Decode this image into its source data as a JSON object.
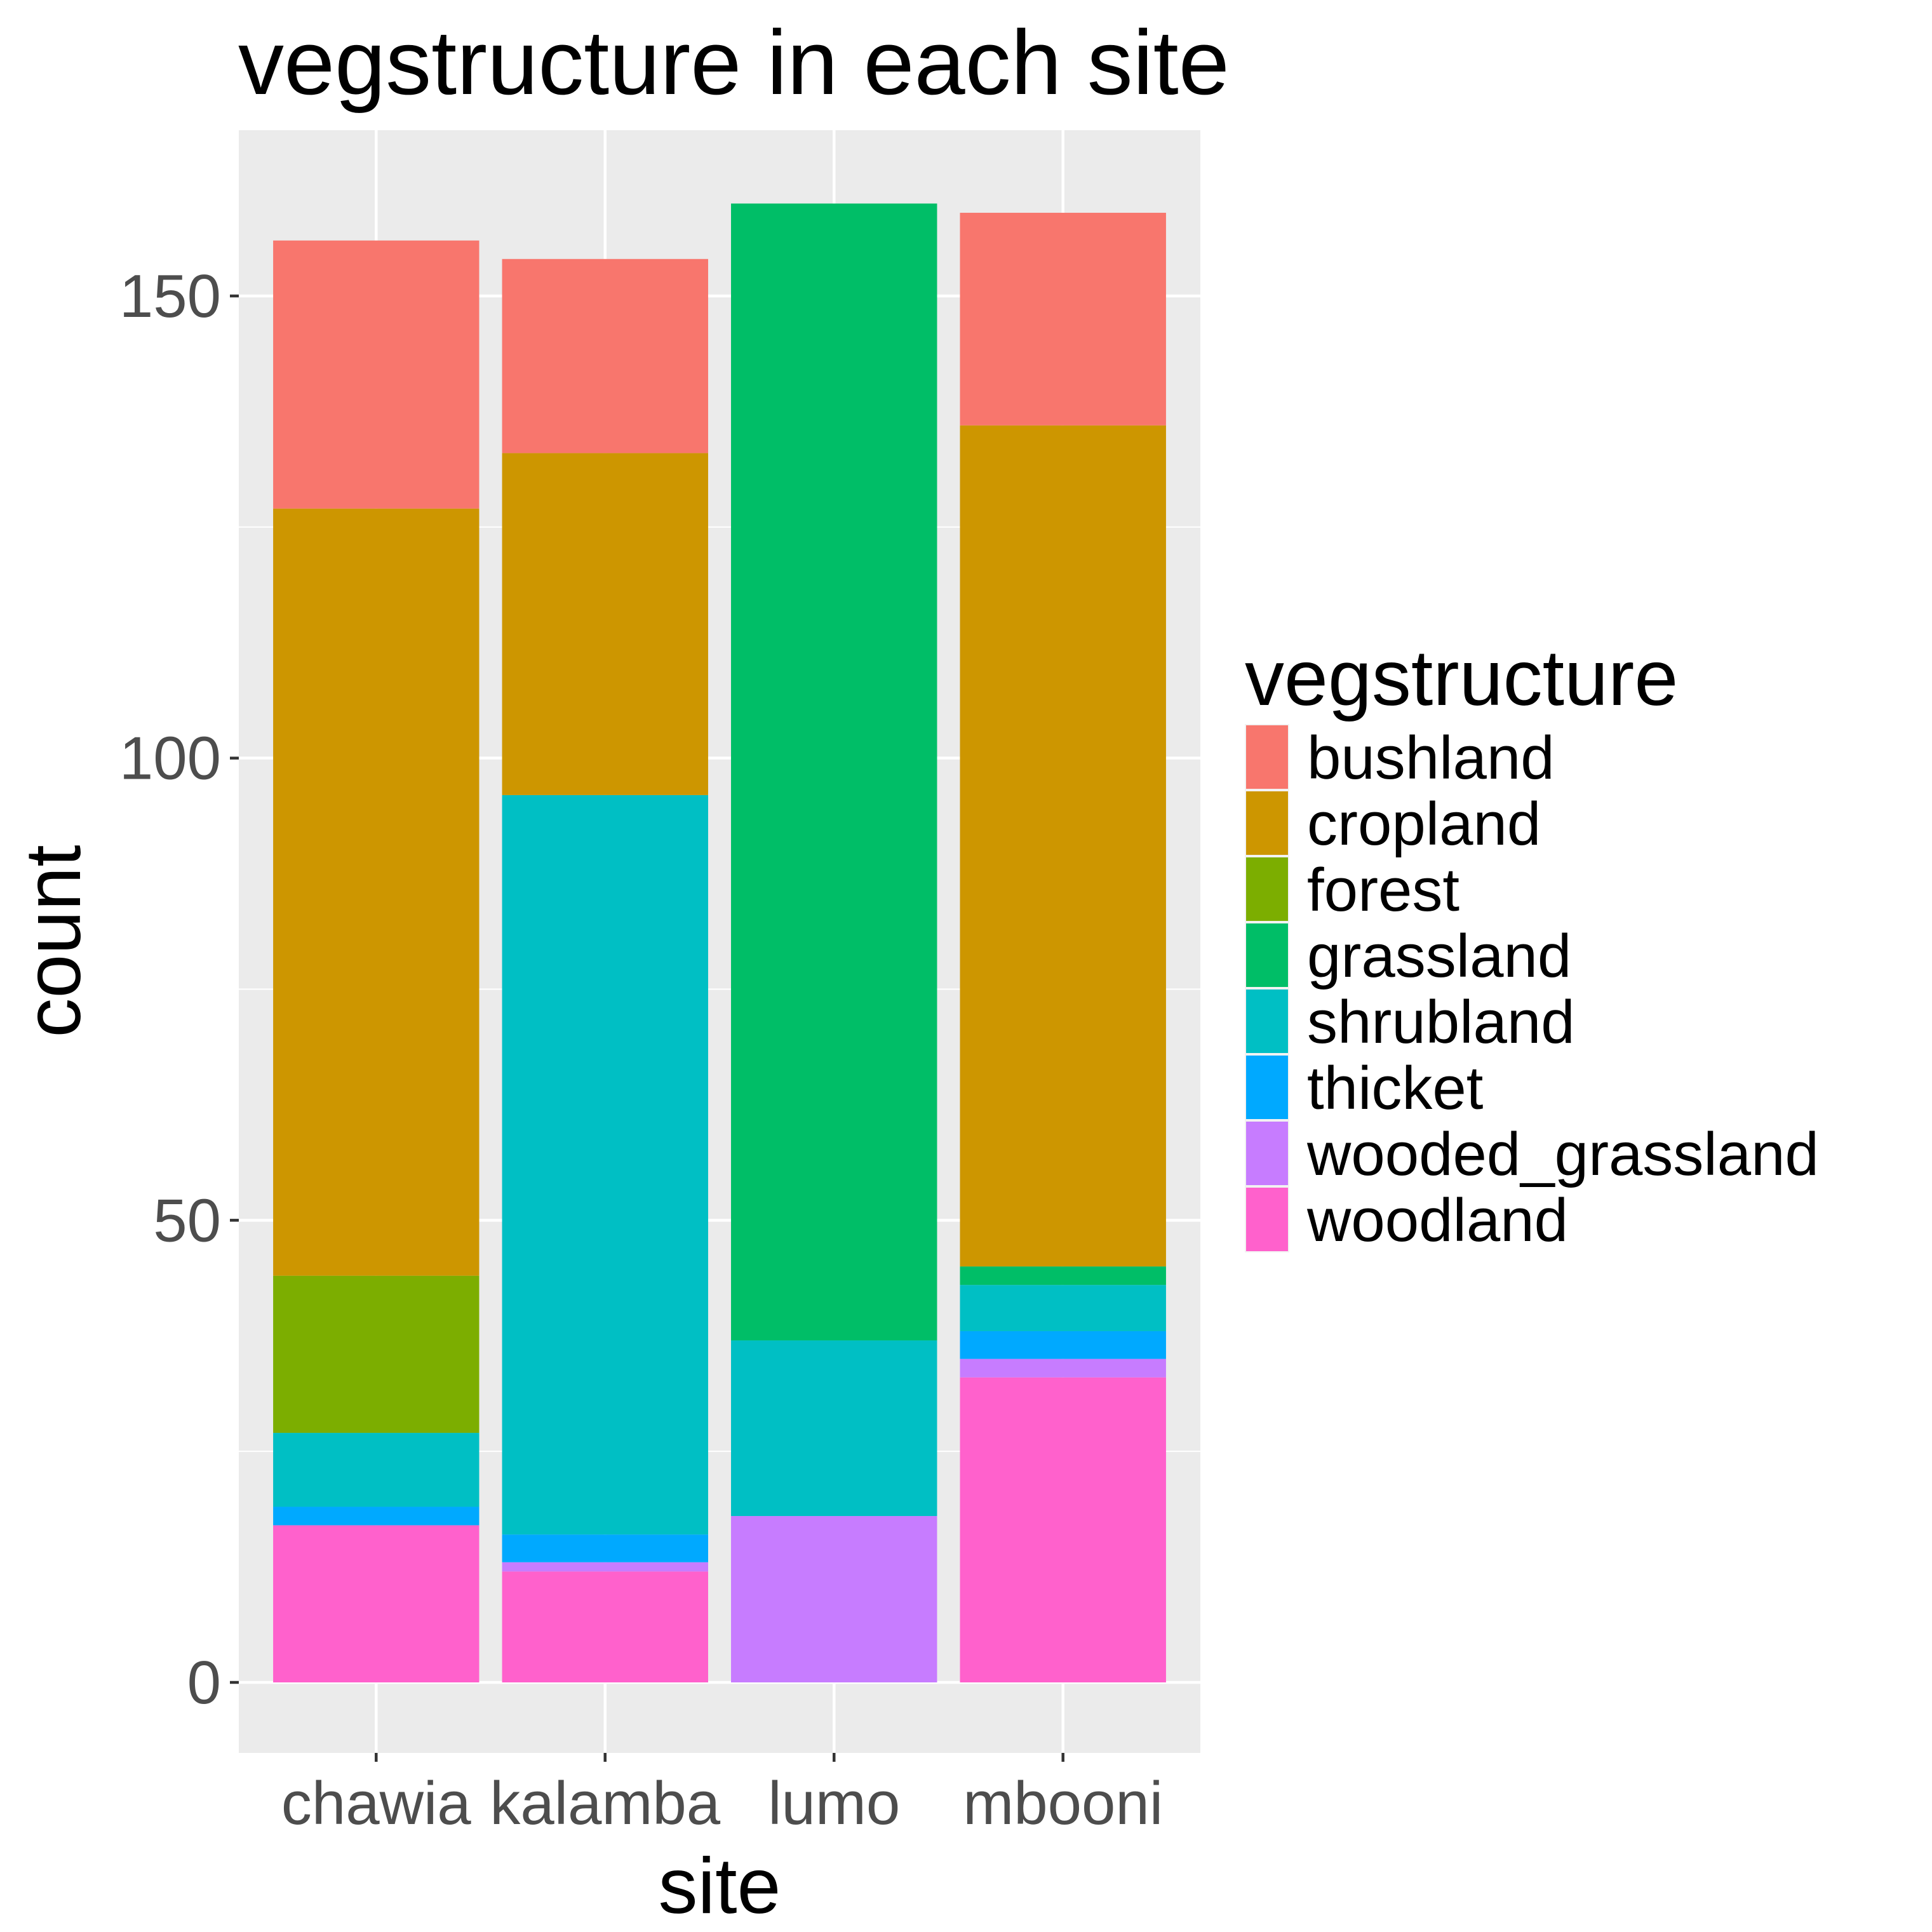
{
  "chart_data": {
    "type": "bar",
    "stacked": true,
    "title": "vegstructure in each site",
    "xlabel": "site",
    "ylabel": "count",
    "ylim": [
      -7.5,
      168
    ],
    "yticks": [
      0,
      50,
      100,
      150
    ],
    "grid": true,
    "legend_position": "right",
    "legend_title": "vegstructure",
    "categories": [
      "chawia",
      "kalamba",
      "lumo",
      "mbooni"
    ],
    "series": [
      {
        "name": "bushland",
        "color": "#F8766D",
        "values": [
          29,
          21,
          0,
          23
        ]
      },
      {
        "name": "cropland",
        "color": "#CD9600",
        "values": [
          83,
          37,
          0,
          91
        ]
      },
      {
        "name": "forest",
        "color": "#7CAE00",
        "values": [
          17,
          0,
          0,
          0
        ]
      },
      {
        "name": "grassland",
        "color": "#00BE67",
        "values": [
          0,
          0,
          123,
          2
        ]
      },
      {
        "name": "shrubland",
        "color": "#00BFC4",
        "values": [
          8,
          80,
          19,
          5
        ]
      },
      {
        "name": "thicket",
        "color": "#00A9FF",
        "values": [
          2,
          3,
          0,
          3
        ]
      },
      {
        "name": "wooded_grassland",
        "color": "#C77CFF",
        "values": [
          0,
          1,
          18,
          2
        ]
      },
      {
        "name": "woodland",
        "color": "#FF61CC",
        "values": [
          17,
          12,
          0,
          33
        ]
      }
    ]
  }
}
